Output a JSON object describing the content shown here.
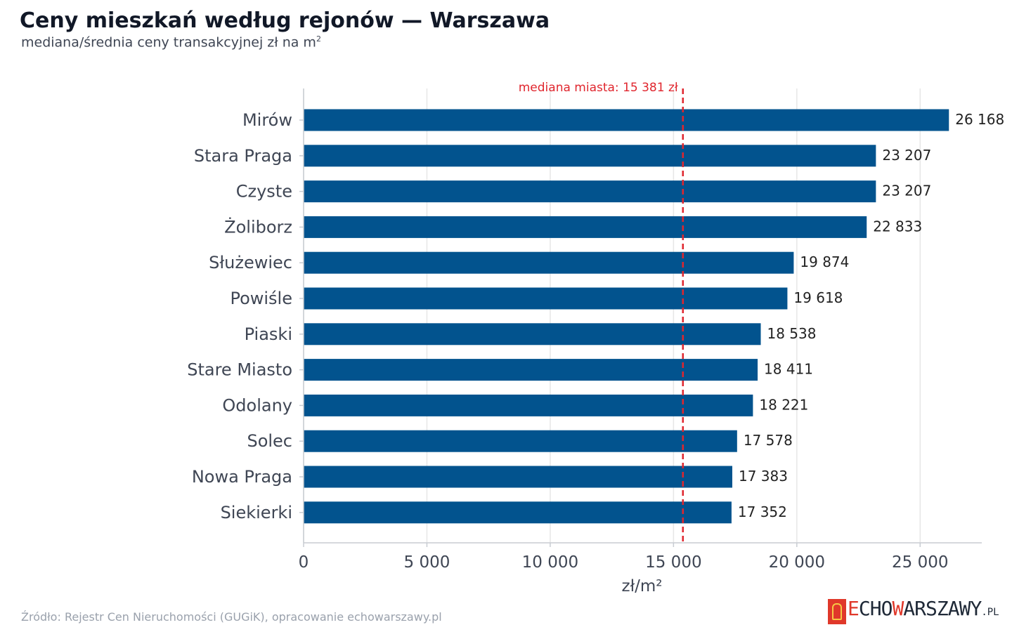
{
  "header": {
    "title": "Ceny mieszkań według rejonów — Warszawa",
    "subtitle": "mediana/średnia ceny transakcyjnej zł na m",
    "subtitle_sup": "2"
  },
  "footer": {
    "source": "Źródło: Rejestr Cen Nieruchomości (GUGiK), opracowanie echowarszawy.pl",
    "logo_echo_e": "E",
    "logo_echo_rest": "CHO",
    "logo_w": "W",
    "logo_arszawy": "ARSZAWY",
    "logo_pl": ".PL"
  },
  "chart_data": {
    "type": "bar",
    "orientation": "horizontal",
    "categories": [
      "Mirów",
      "Stara Praga",
      "Czyste",
      "Żoliborz",
      "Służewiec",
      "Powiśle",
      "Piaski",
      "Stare Miasto",
      "Odolany",
      "Solec",
      "Nowa Praga",
      "Siekierki"
    ],
    "values": [
      26168,
      23207,
      23207,
      22833,
      19874,
      19618,
      18538,
      18411,
      18221,
      17578,
      17383,
      17352
    ],
    "value_labels": [
      "26 168",
      "23 207",
      "23 207",
      "22 833",
      "19 874",
      "19 618",
      "18 538",
      "18 411",
      "18 221",
      "17 578",
      "17 383",
      "17 352"
    ],
    "xlabel": "zł/m²",
    "ylabel": "",
    "xlim": [
      0,
      27500
    ],
    "xticks": [
      0,
      5000,
      10000,
      15000,
      20000,
      25000
    ],
    "xtick_labels": [
      "0",
      "5 000",
      "10 000",
      "15 000",
      "20 000",
      "25 000"
    ],
    "grid": "vertical",
    "reference_line": {
      "value": 15381,
      "label": "mediana miasta: 15 381 zł",
      "color": "#e0262e",
      "style": "dashed"
    },
    "colors": {
      "bar": "#02538e",
      "grid": "#e6e6e6",
      "axis": "#c8ccd2",
      "tick_text": "#3f4654",
      "value_text": "#222222"
    }
  }
}
